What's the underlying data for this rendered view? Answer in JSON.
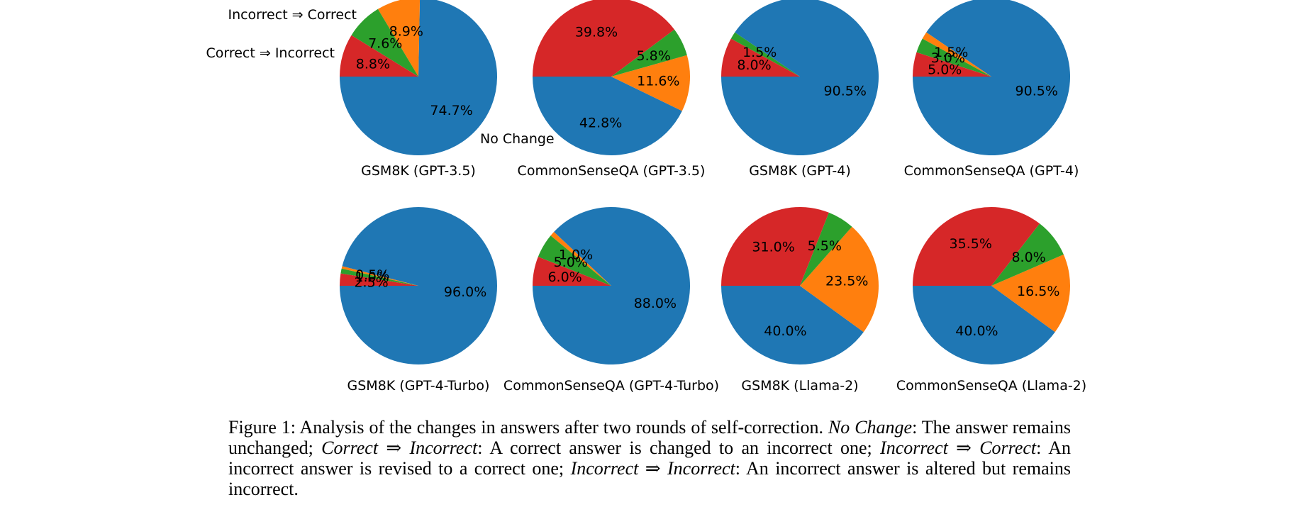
{
  "figure": {
    "caption_segments": [
      {
        "text": "Figure 1: Analysis of the changes in answers after two rounds of self-correction. ",
        "italic": false
      },
      {
        "text": "No Change",
        "italic": true
      },
      {
        "text": ": The answer remains unchanged; ",
        "italic": false
      },
      {
        "text": "Correct ⇒ Incorrect",
        "italic": true
      },
      {
        "text": ": A correct answer is changed to an incorrect one; ",
        "italic": false
      },
      {
        "text": "Incorrect ⇒ Correct",
        "italic": true
      },
      {
        "text": ": An incorrect answer is revised to a correct one; ",
        "italic": false
      },
      {
        "text": "Incorrect ⇒ Incorrect",
        "italic": true
      },
      {
        "text": ": An incorrect answer is altered but remains incorrect.",
        "italic": false
      }
    ]
  },
  "annotations": {
    "incorrect_to_correct": "Incorrect ⇒ Correct",
    "correct_to_incorrect": "Correct ⇒ Incorrect",
    "no_change": "No Change"
  },
  "chart_data": {
    "type": "pie",
    "grid": {
      "rows": 2,
      "cols": 4
    },
    "start_angle_deg": 180,
    "direction": "counterclockwise",
    "wedge_order": [
      "no_change",
      "incorrect_to_incorrect",
      "incorrect_to_correct",
      "correct_to_incorrect"
    ],
    "legend": {
      "no_change": "No Change",
      "incorrect_to_incorrect": "Incorrect ⇒ Incorrect",
      "incorrect_to_correct": "Incorrect ⇒ Correct",
      "correct_to_incorrect": "Correct ⇒ Incorrect"
    },
    "colors": {
      "no_change": "#1f77b4",
      "incorrect_to_incorrect": "#ff7f0e",
      "incorrect_to_correct": "#2ca02c",
      "correct_to_incorrect": "#d62728"
    },
    "label_format": "percent_one_decimal",
    "pies": [
      {
        "title": "GSM8K (GPT-3.5)",
        "values": {
          "no_change": 74.7,
          "incorrect_to_incorrect": 8.9,
          "incorrect_to_correct": 7.6,
          "correct_to_incorrect": 8.8
        }
      },
      {
        "title": "CommonSenseQA (GPT-3.5)",
        "values": {
          "no_change": 42.8,
          "incorrect_to_incorrect": 11.6,
          "incorrect_to_correct": 5.8,
          "correct_to_incorrect": 39.8
        }
      },
      {
        "title": "GSM8K (GPT-4)",
        "values": {
          "no_change": 90.5,
          "incorrect_to_incorrect": 0.0,
          "incorrect_to_correct": 1.5,
          "correct_to_incorrect": 8.0
        }
      },
      {
        "title": "CommonSenseQA (GPT-4)",
        "values": {
          "no_change": 90.5,
          "incorrect_to_incorrect": 1.5,
          "incorrect_to_correct": 3.0,
          "correct_to_incorrect": 5.0
        }
      },
      {
        "title": "GSM8K (GPT-4-Turbo)",
        "values": {
          "no_change": 96.0,
          "incorrect_to_incorrect": 0.5,
          "incorrect_to_correct": 1.0,
          "correct_to_incorrect": 2.5
        }
      },
      {
        "title": "CommonSenseQA (GPT-4-Turbo)",
        "values": {
          "no_change": 88.0,
          "incorrect_to_incorrect": 1.0,
          "incorrect_to_correct": 5.0,
          "correct_to_incorrect": 6.0
        }
      },
      {
        "title": "GSM8K (Llama-2)",
        "values": {
          "no_change": 40.0,
          "incorrect_to_incorrect": 23.5,
          "incorrect_to_correct": 5.5,
          "correct_to_incorrect": 31.0
        }
      },
      {
        "title": "CommonSenseQA (Llama-2)",
        "values": {
          "no_change": 40.0,
          "incorrect_to_incorrect": 16.5,
          "incorrect_to_correct": 8.0,
          "correct_to_incorrect": 35.5
        }
      }
    ]
  }
}
